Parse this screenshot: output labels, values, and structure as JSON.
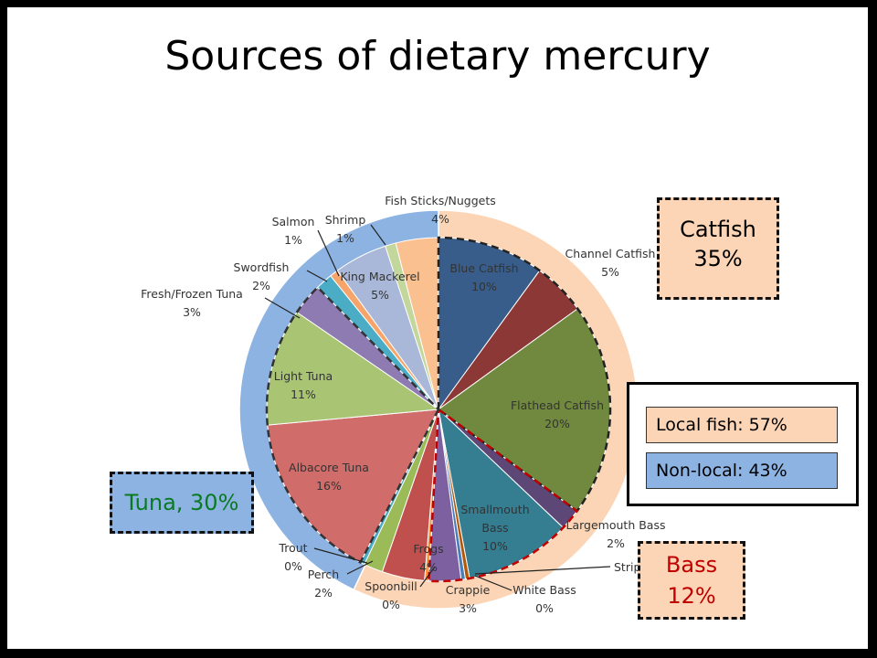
{
  "slide": {
    "title": "Sources of dietary mercury"
  },
  "colors": {
    "local": "#fbd5b5",
    "nonlocal": "#8db3e2",
    "tuna_text": "#0a7a22",
    "bass_text": "#c00000"
  },
  "chart_data": {
    "type": "pie",
    "title": "Sources of dietary mercury",
    "legend": "right",
    "outer_ring": [
      {
        "name": "Local fish",
        "value": 57,
        "color": "#fbd5b5"
      },
      {
        "name": "Non-local",
        "value": 43,
        "color": "#8db3e2"
      }
    ],
    "slices": [
      {
        "name": "Blue Catfish",
        "pct": "10%",
        "value": 10,
        "group": "local",
        "color": "#385d8a"
      },
      {
        "name": "Channel Catfish",
        "pct": "5%",
        "value": 5,
        "group": "local",
        "color": "#8c3836"
      },
      {
        "name": "Flathead Catfish",
        "pct": "20%",
        "value": 20,
        "group": "local",
        "color": "#71893f"
      },
      {
        "name": "Largemouth Bass",
        "pct": "2%",
        "value": 2,
        "group": "local",
        "color": "#5c4776"
      },
      {
        "name": "Smallmouth Bass",
        "pct": "10%",
        "value": 10,
        "group": "local",
        "color": "#357d91"
      },
      {
        "name": "Striped Bass",
        "pct": "",
        "value": 0.4,
        "group": "local",
        "color": "#b65708"
      },
      {
        "name": "White Bass",
        "pct": "0%",
        "value": 0.4,
        "group": "local",
        "color": "#4a7ebb"
      },
      {
        "name": "Crappie",
        "pct": "3%",
        "value": 3,
        "group": "local",
        "color": "#7d60a0"
      },
      {
        "name": "Spoonbill",
        "pct": "0%",
        "value": 0.4,
        "group": "local",
        "color": "#f79646"
      },
      {
        "name": "Frogs",
        "pct": "4%",
        "value": 4,
        "group": "local",
        "color": "#c0504d"
      },
      {
        "name": "Perch",
        "pct": "2%",
        "value": 1.8,
        "group": "nonlocal",
        "color": "#9bbb59"
      },
      {
        "name": "Trout",
        "pct": "0%",
        "value": 0.4,
        "group": "nonlocal",
        "color": "#4bacc6"
      },
      {
        "name": "Albacore Tuna",
        "pct": "16%",
        "value": 16,
        "group": "nonlocal",
        "color": "#d06c6a"
      },
      {
        "name": "Light Tuna",
        "pct": "11%",
        "value": 11,
        "group": "nonlocal",
        "color": "#a9c574"
      },
      {
        "name": "Fresh/Frozen Tuna",
        "pct": "3%",
        "value": 3,
        "group": "nonlocal",
        "color": "#8e7bb1"
      },
      {
        "name": "Swordfish",
        "pct": "2%",
        "value": 1.6,
        "group": "nonlocal",
        "color": "#4bacc6"
      },
      {
        "name": "Salmon",
        "pct": "1%",
        "value": 0.8,
        "group": "nonlocal",
        "color": "#f7a46b"
      },
      {
        "name": "King Mackerel",
        "pct": "5%",
        "value": 5,
        "group": "nonlocal",
        "color": "#a9b8d8"
      },
      {
        "name": "Shrimp",
        "pct": "1%",
        "value": 1,
        "group": "nonlocal",
        "color": "#c3d69b"
      },
      {
        "name": "Fish Sticks/Nuggets",
        "pct": "4%",
        "value": 4,
        "group": "nonlocal",
        "color": "#fac090"
      }
    ],
    "label_texts": {
      "Blue Catfish": [
        "Blue Catfish",
        "10%"
      ],
      "Channel Catfish": [
        "Channel Catfish",
        "5%"
      ],
      "Flathead Catfish": [
        "Flathead Catfish",
        "20%"
      ],
      "Largemouth Bass": [
        "Largemouth Bass",
        "2%"
      ],
      "Smallmouth Bass": [
        "Smallmouth",
        "Bass",
        "10%"
      ],
      "Striped Bass": [
        "Strip"
      ],
      "White Bass": [
        "White Bass",
        "0%"
      ],
      "Crappie": [
        "Crappie",
        "3%"
      ],
      "Spoonbill": [
        "Spoonbill",
        "0%"
      ],
      "Frogs": [
        "Frogs",
        "4%"
      ],
      "Perch": [
        "Perch",
        "2%"
      ],
      "Trout": [
        "Trout",
        "0%"
      ],
      "Albacore Tuna": [
        "Albacore Tuna",
        "16%"
      ],
      "Light Tuna": [
        "Light Tuna",
        "11%"
      ],
      "Fresh/Frozen Tuna": [
        "Fresh/Frozen Tuna",
        "3%"
      ],
      "Swordfish": [
        "Swordfish",
        "2%"
      ],
      "Salmon": [
        "Salmon",
        "1%"
      ],
      "King Mackerel": [
        "King Mackerel",
        "5%"
      ],
      "Shrimp": [
        "Shrimp",
        "1%"
      ],
      "Fish Sticks/Nuggets": [
        "Fish Sticks/Nuggets",
        "4%"
      ]
    }
  },
  "callouts": {
    "catfish": {
      "line1": "Catfish",
      "line2": "35%"
    },
    "tuna": {
      "text": "Tuna, 30%"
    },
    "bass": {
      "line1": "Bass",
      "line2": "12%"
    }
  },
  "legend": {
    "local": "Local fish: 57%",
    "nonlocal": "Non-local: 43%"
  }
}
